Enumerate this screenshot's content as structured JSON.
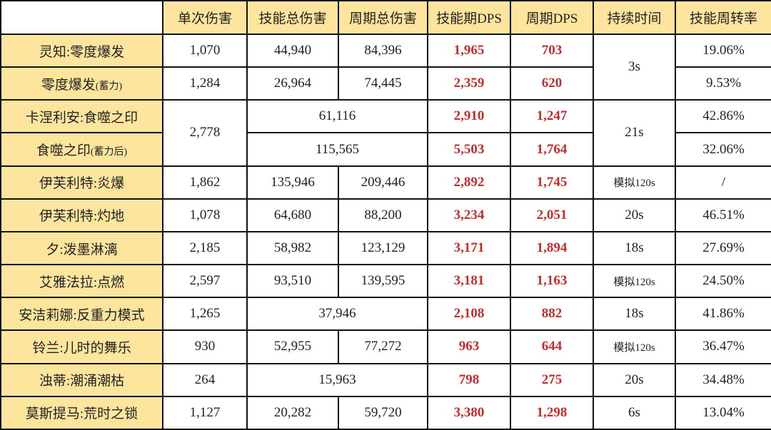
{
  "colors": {
    "header_bg": "#fde59e",
    "highlight_text": "#c62a2a"
  },
  "headers": [
    "",
    "单次伤害",
    "技能总伤害",
    "周期总伤害",
    "技能期DPS",
    "周期DPS",
    "持续时间",
    "技能周转率"
  ],
  "rows": [
    {
      "name": "灵知:零度爆发",
      "note": "",
      "cells": [
        "1,070",
        "44,940",
        "84,396",
        "1,965",
        "703",
        "3s",
        "19.06%"
      ]
    },
    {
      "name": "零度爆发",
      "note": "(蓄力)",
      "cells": [
        "1,284",
        "26,964",
        "74,445",
        "2,359",
        "620",
        null,
        "9.53%"
      ]
    },
    {
      "name": "卡涅利安:食噬之印",
      "note": "",
      "cells": [
        "2,778",
        "61,116",
        null,
        "2,910",
        "1,247",
        "21s",
        "42.86%"
      ]
    },
    {
      "name": "食噬之印",
      "note": "(蓄力后)",
      "cells": [
        null,
        "115,565",
        null,
        "5,503",
        "1,764",
        null,
        "32.06%"
      ]
    },
    {
      "name": "伊芙利特:炎爆",
      "note": "",
      "cells": [
        "1,862",
        "135,946",
        "209,446",
        "2,892",
        "1,745",
        "模拟120s",
        "/"
      ]
    },
    {
      "name": "伊芙利特:灼地",
      "note": "",
      "cells": [
        "1,078",
        "64,680",
        "88,200",
        "3,234",
        "2,051",
        "20s",
        "46.51%"
      ]
    },
    {
      "name": "夕:泼墨淋漓",
      "note": "",
      "cells": [
        "2,185",
        "58,982",
        "123,129",
        "3,171",
        "1,894",
        "18s",
        "27.69%"
      ]
    },
    {
      "name": "艾雅法拉:点燃",
      "note": "",
      "cells": [
        "2,597",
        "93,510",
        "139,595",
        "3,181",
        "1,163",
        "模拟120s",
        "24.50%"
      ]
    },
    {
      "name": "安洁莉娜:反重力模式",
      "note": "",
      "cells": [
        "1,265",
        "37,946",
        null,
        "2,108",
        "882",
        "18s",
        "41.86%"
      ]
    },
    {
      "name": "铃兰:儿时的舞乐",
      "note": "",
      "cells": [
        "930",
        "52,955",
        "77,272",
        "963",
        "644",
        "模拟120s",
        "36.47%"
      ]
    },
    {
      "name": "浊蒂:潮涌潮枯",
      "note": "",
      "cells": [
        "264",
        "15,963",
        null,
        "798",
        "275",
        "20s",
        "34.48%"
      ]
    },
    {
      "name": "莫斯提马:荒时之锁",
      "note": "",
      "cells": [
        "1,127",
        "20,282",
        "59,720",
        "3,380",
        "1,298",
        "6s",
        "13.04%"
      ]
    }
  ]
}
